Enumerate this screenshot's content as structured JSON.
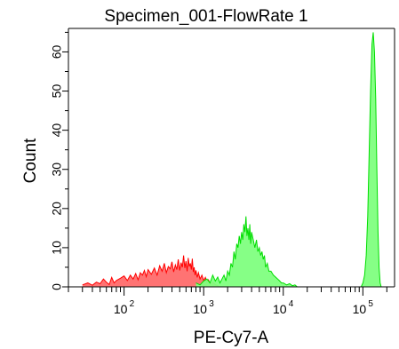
{
  "chart_data": {
    "type": "area",
    "title": "Specimen_001-FlowRate 1",
    "xlabel": "PE-Cy7-A",
    "ylabel": "Count",
    "x_scale": "log",
    "xlim": [
      20,
      250000
    ],
    "ylim": [
      0,
      66
    ],
    "grid": false,
    "legend": "none",
    "x_tick_labels": [
      {
        "value": 100,
        "base": "10",
        "exp": "2"
      },
      {
        "value": 1000,
        "base": "10",
        "exp": "3"
      },
      {
        "value": 10000,
        "base": "10",
        "exp": "4"
      },
      {
        "value": 100000,
        "base": "10",
        "exp": "5"
      }
    ],
    "y_tick_labels": [
      {
        "value": 0,
        "label": "0"
      },
      {
        "value": 10,
        "label": "10"
      },
      {
        "value": 20,
        "label": "20"
      },
      {
        "value": 30,
        "label": "30"
      },
      {
        "value": 40,
        "label": "40"
      },
      {
        "value": 50,
        "label": "50"
      },
      {
        "value": 60,
        "label": "60"
      }
    ],
    "series": [
      {
        "color": "#ff0000",
        "fill": "#ff0000",
        "x": [
          30,
          35,
          40,
          45,
          50,
          55,
          60,
          65,
          70,
          75,
          80,
          90,
          100,
          110,
          120,
          130,
          140,
          150,
          160,
          170,
          180,
          190,
          200,
          220,
          240,
          260,
          280,
          300,
          320,
          340,
          360,
          380,
          400,
          420,
          440,
          460,
          480,
          500,
          520,
          540,
          560,
          580,
          600,
          620,
          640,
          660,
          680,
          700,
          720,
          740,
          760,
          780,
          800,
          830,
          860,
          900,
          950,
          1000,
          1050,
          1100,
          1150,
          1200,
          1300,
          1400,
          1500,
          1600
        ],
        "values": [
          0.5,
          1.0,
          0.4,
          1.2,
          0.8,
          2.0,
          1.2,
          0.6,
          2.4,
          1.0,
          1.6,
          2.2,
          2.8,
          1.6,
          3.0,
          2.0,
          3.4,
          1.8,
          3.6,
          3.0,
          4.2,
          2.6,
          4.4,
          3.2,
          4.8,
          3.0,
          5.4,
          4.0,
          6.0,
          3.6,
          5.2,
          4.6,
          6.4,
          3.8,
          5.6,
          4.4,
          7.0,
          4.2,
          6.2,
          5.0,
          8.0,
          4.8,
          6.6,
          4.0,
          7.4,
          5.2,
          6.0,
          4.4,
          7.2,
          3.8,
          5.0,
          3.0,
          4.2,
          2.4,
          3.6,
          2.0,
          3.0,
          1.6,
          2.4,
          1.2,
          1.8,
          0.8,
          1.2,
          0.6,
          0.3,
          0.0
        ]
      },
      {
        "color": "#00dd00",
        "fill": "#80ff80",
        "x": [
          800,
          900,
          1000,
          1100,
          1200,
          1300,
          1400,
          1500,
          1600,
          1700,
          1800,
          1900,
          2000,
          2100,
          2200,
          2300,
          2400,
          2500,
          2600,
          2700,
          2800,
          2900,
          3000,
          3100,
          3200,
          3300,
          3400,
          3500,
          3600,
          3700,
          3800,
          3900,
          4000,
          4200,
          4400,
          4600,
          4800,
          5000,
          5200,
          5400,
          5600,
          5800,
          6000,
          6300,
          6600,
          7000,
          7500,
          8000,
          8500,
          9000,
          9500,
          10000,
          11000,
          12000,
          13000,
          14000,
          15000
        ],
        "values": [
          1.0,
          0.5,
          1.5,
          2.0,
          1.0,
          3.0,
          1.5,
          2.5,
          1.0,
          2.0,
          3.0,
          1.5,
          4.0,
          3.0,
          6.0,
          5.0,
          9.0,
          7.0,
          11.0,
          10.0,
          13.0,
          11.0,
          14.0,
          12.0,
          16.0,
          14.0,
          18.0,
          13.0,
          15.0,
          12.0,
          16.0,
          11.0,
          14.0,
          12.0,
          10.0,
          12.0,
          9.0,
          10.0,
          8.0,
          9.0,
          7.0,
          8.0,
          5.0,
          6.0,
          4.0,
          4.0,
          3.0,
          2.5,
          2.0,
          1.5,
          1.0,
          1.0,
          0.5,
          0.8,
          0.3,
          0.5,
          0.0
        ],
        "peak2_x": [
          95000,
          100000,
          105000,
          110000,
          115000,
          120000,
          125000,
          130000,
          135000,
          140000,
          145000,
          150000,
          155000,
          160000,
          165000,
          170000
        ],
        "peak2_values": [
          0.0,
          1.0,
          3.0,
          8.0,
          18.0,
          34.0,
          50.0,
          62.0,
          65.0,
          60.0,
          48.0,
          30.0,
          14.0,
          5.0,
          1.0,
          0.0
        ]
      }
    ]
  }
}
